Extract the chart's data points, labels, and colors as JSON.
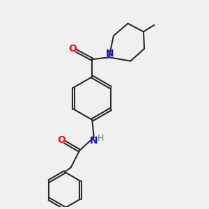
{
  "bg_color": "#f0f0f0",
  "bond_color": "#2a2a2a",
  "bond_width": 1.5,
  "O_color": "#ee1111",
  "N_color": "#1111cc",
  "H_color": "#558888",
  "font_size": 10,
  "fig_size": [
    3.0,
    3.0
  ],
  "dpi": 100,
  "xlim": [
    0,
    10
  ],
  "ylim": [
    0,
    10
  ]
}
